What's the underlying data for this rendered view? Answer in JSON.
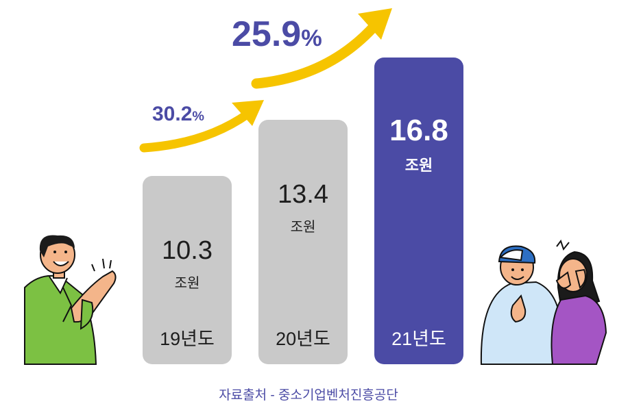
{
  "chart_data": {
    "type": "bar",
    "categories": [
      "19년도",
      "20년도",
      "21년도"
    ],
    "values": [
      10.3,
      13.4,
      16.8
    ],
    "value_labels": [
      "10.3",
      "13.4",
      "16.8"
    ],
    "unit": "조원",
    "growth": [
      {
        "from": "19년도",
        "to": "20년도",
        "value": "30.2",
        "symbol": "%"
      },
      {
        "from": "20년도",
        "to": "21년도",
        "value": "25.9",
        "symbol": "%"
      }
    ],
    "highlight_category": "21년도",
    "colors": {
      "bar": "#c9c9c9",
      "highlight": "#4b4ba5",
      "arrow": "#f6c400",
      "growth_text": "#4b4ba5"
    }
  },
  "source": "자료출처 - 중소기업벤처진흥공단",
  "illustrations": {
    "left": "clapping-man-icon",
    "right": "cheering-couple-icon"
  }
}
